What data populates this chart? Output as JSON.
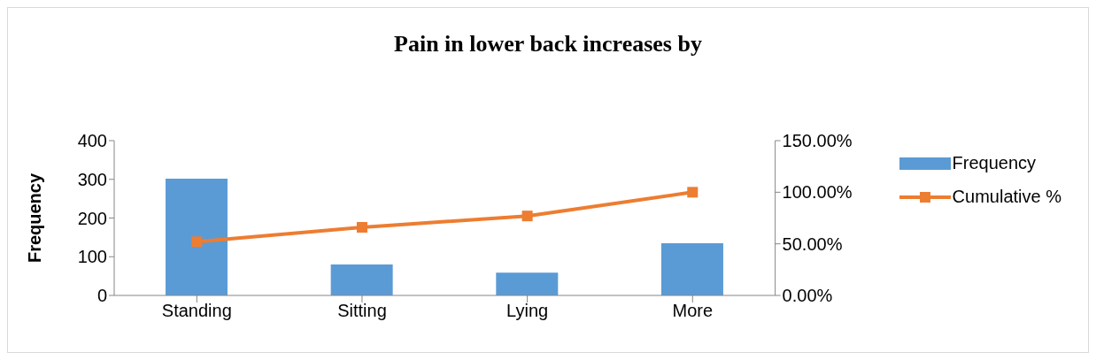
{
  "chart_data": {
    "type": "bar",
    "title": "Pain in lower back increases by",
    "ylabel": "Frequency",
    "categories": [
      "Standing",
      "Sitting",
      "Lying",
      "More"
    ],
    "series": [
      {
        "name": "Frequency",
        "color": "#5b9bd5",
        "values": [
          302,
          80,
          59,
          135
        ]
      },
      {
        "name": "Cumulative %",
        "type": "line",
        "axis": "y2",
        "color": "#ed7d31",
        "marker": "square",
        "values": [
          52,
          66,
          77,
          100
        ]
      }
    ],
    "ylim": [
      0,
      400
    ],
    "yticks": [
      0,
      100,
      200,
      300,
      400
    ],
    "y2lim": [
      0,
      150
    ],
    "y2ticks": [
      {
        "value": 0,
        "label": "0.00%"
      },
      {
        "value": 50,
        "label": "50.00%"
      },
      {
        "value": 100,
        "label": "100.00%"
      },
      {
        "value": 150,
        "label": "150.00%"
      }
    ],
    "legend": "right",
    "grid": false
  }
}
